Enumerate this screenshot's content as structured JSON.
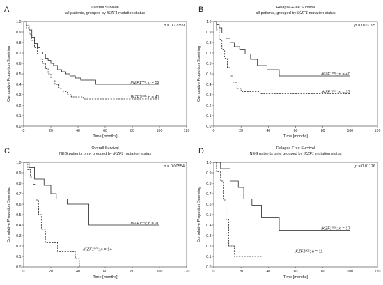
{
  "chart_data": [
    {
      "type": "line",
      "panel_letter": "A",
      "title": "Overall Survival",
      "subtitle_parts": [
        "all patients, grouped by ",
        "IKZF1",
        " mutation status"
      ],
      "xlabel": "Time [months]",
      "ylabel": "Cumulative Proportion Surviving",
      "xlim": [
        0,
        120
      ],
      "ylim": [
        0,
        1
      ],
      "xticks": [
        "0",
        "20",
        "40",
        "60",
        "80",
        "100",
        "120"
      ],
      "yticks": [
        "0.0",
        "0.1",
        "0.2",
        "0.3",
        "0.4",
        "0.5",
        "0.6",
        "0.7",
        "0.8",
        "0.9",
        "1.0"
      ],
      "p_value": "p = 0.27399",
      "series": [
        {
          "style": "solid",
          "legend_gene": "IKZF1",
          "legend_sup": "neg",
          "legend_n": "; n = 52",
          "x": [
            0,
            2,
            2,
            4,
            4,
            6,
            6,
            8,
            8,
            10,
            10,
            12,
            12,
            14,
            14,
            16,
            16,
            18,
            18,
            20,
            20,
            22,
            22,
            25,
            25,
            28,
            28,
            31,
            31,
            34,
            34,
            38,
            38,
            42,
            42,
            53,
            53,
            100
          ],
          "y": [
            1.0,
            1.0,
            0.96,
            0.96,
            0.92,
            0.92,
            0.85,
            0.85,
            0.79,
            0.79,
            0.75,
            0.75,
            0.71,
            0.71,
            0.69,
            0.69,
            0.65,
            0.65,
            0.63,
            0.63,
            0.6,
            0.6,
            0.58,
            0.58,
            0.54,
            0.54,
            0.52,
            0.52,
            0.5,
            0.5,
            0.48,
            0.48,
            0.46,
            0.46,
            0.44,
            0.44,
            0.4,
            0.4
          ]
        },
        {
          "style": "dashed",
          "legend_gene": "IKZF1",
          "legend_sup": "pos",
          "legend_n": "; n = 47",
          "x": [
            0,
            2,
            2,
            4,
            4,
            6,
            6,
            8,
            8,
            10,
            10,
            12,
            12,
            14,
            14,
            16,
            16,
            18,
            18,
            20,
            20,
            23,
            23,
            26,
            26,
            29,
            29,
            32,
            32,
            35,
            35,
            44,
            44,
            100
          ],
          "y": [
            1.0,
            1.0,
            0.94,
            0.94,
            0.88,
            0.88,
            0.82,
            0.82,
            0.75,
            0.75,
            0.69,
            0.69,
            0.64,
            0.64,
            0.6,
            0.6,
            0.55,
            0.55,
            0.5,
            0.5,
            0.45,
            0.45,
            0.4,
            0.4,
            0.36,
            0.36,
            0.33,
            0.33,
            0.3,
            0.3,
            0.28,
            0.28,
            0.26,
            0.26
          ]
        }
      ]
    },
    {
      "type": "line",
      "panel_letter": "B",
      "title": "Relapse-Free Survival",
      "subtitle_parts": [
        "all patients, grouped by ",
        "IKZF1",
        " mutation status"
      ],
      "xlabel": "Time [months]",
      "ylabel": "Cumulative Proportion Surviving",
      "xlim": [
        0,
        120
      ],
      "ylim": [
        0,
        1
      ],
      "xticks": [
        "0",
        "20",
        "40",
        "60",
        "80",
        "100",
        "120"
      ],
      "yticks": [
        "0.0",
        "0.1",
        "0.2",
        "0.3",
        "0.4",
        "0.5",
        "0.6",
        "0.7",
        "0.8",
        "0.9",
        "1.0"
      ],
      "p_value": "p = 0.03195",
      "series": [
        {
          "style": "solid",
          "legend_gene": "IKZF1",
          "legend_sup": "neg",
          "legend_n": "; n = 40",
          "x": [
            0,
            2,
            2,
            4,
            4,
            6,
            6,
            9,
            9,
            12,
            12,
            15,
            15,
            19,
            19,
            23,
            23,
            27,
            27,
            32,
            32,
            39,
            39,
            48,
            48,
            100
          ],
          "y": [
            1.0,
            1.0,
            0.97,
            0.97,
            0.94,
            0.94,
            0.89,
            0.89,
            0.84,
            0.84,
            0.8,
            0.8,
            0.76,
            0.76,
            0.73,
            0.73,
            0.69,
            0.69,
            0.64,
            0.64,
            0.58,
            0.58,
            0.54,
            0.54,
            0.48,
            0.48
          ]
        },
        {
          "style": "dashed",
          "legend_gene": "IKZF1",
          "legend_sup": "pos",
          "legend_n": "; n = 37",
          "x": [
            0,
            2,
            2,
            4,
            4,
            6,
            6,
            8,
            8,
            10,
            10,
            12,
            12,
            14,
            14,
            17,
            17,
            20,
            20,
            34,
            34,
            100
          ],
          "y": [
            1.0,
            1.0,
            0.92,
            0.92,
            0.83,
            0.83,
            0.73,
            0.73,
            0.65,
            0.65,
            0.56,
            0.56,
            0.48,
            0.48,
            0.42,
            0.42,
            0.36,
            0.36,
            0.33,
            0.33,
            0.31,
            0.31
          ]
        }
      ]
    },
    {
      "type": "line",
      "panel_letter": "C",
      "title": "Overall Survival",
      "subtitle_parts": [
        "NEG patients only, grouped by ",
        "IKZF1",
        " mutation status"
      ],
      "xlabel": "Time [months]",
      "ylabel": "Cumulative Proportion Surviving",
      "xlim": [
        0,
        120
      ],
      "ylim": [
        0,
        1
      ],
      "xticks": [
        "0",
        "20",
        "40",
        "60",
        "80",
        "100",
        "120"
      ],
      "yticks": [
        "0.0",
        "0.1",
        "0.2",
        "0.3",
        "0.4",
        "0.5",
        "0.6",
        "0.7",
        "0.8",
        "0.9",
        "1.0"
      ],
      "p_value": "p = 0.00554",
      "series": [
        {
          "style": "solid",
          "legend_gene": "IKZF1",
          "legend_sup": "neg",
          "legend_n": "; n = 20",
          "x": [
            0,
            4,
            4,
            8,
            8,
            15,
            15,
            20,
            20,
            24,
            24,
            32,
            32,
            48,
            48,
            100
          ],
          "y": [
            1.0,
            1.0,
            0.95,
            0.95,
            0.84,
            0.84,
            0.78,
            0.78,
            0.7,
            0.7,
            0.65,
            0.65,
            0.6,
            0.6,
            0.4,
            0.4
          ]
        },
        {
          "style": "dashed",
          "legend_gene": "IKZF1",
          "legend_sup": "pos",
          "legend_n": "; n = 14",
          "x": [
            0,
            3,
            3,
            5,
            5,
            7,
            7,
            9,
            9,
            11,
            11,
            13,
            13,
            16,
            16,
            25,
            25,
            38,
            38,
            41,
            41
          ],
          "y": [
            1.0,
            1.0,
            0.93,
            0.93,
            0.86,
            0.86,
            0.79,
            0.79,
            0.64,
            0.64,
            0.5,
            0.5,
            0.36,
            0.36,
            0.23,
            0.23,
            0.15,
            0.15,
            0.08,
            0.08,
            0.0
          ]
        }
      ]
    },
    {
      "type": "line",
      "panel_letter": "D",
      "title": "Relapse-Free Survival",
      "subtitle_parts": [
        "NEG patients only, grouped by ",
        "IKZF1",
        " mutation status"
      ],
      "xlabel": "Time [months]",
      "ylabel": "Cumulative Proportion Surviving",
      "xlim": [
        0,
        120
      ],
      "ylim": [
        0,
        1
      ],
      "xticks": [
        "0",
        "20",
        "40",
        "60",
        "80",
        "100",
        "120"
      ],
      "yticks": [
        "0.0",
        "0.1",
        "0.2",
        "0.3",
        "0.4",
        "0.5",
        "0.6",
        "0.7",
        "0.8",
        "0.9",
        "1.0"
      ],
      "p_value": "p = 0.01176",
      "series": [
        {
          "style": "solid",
          "legend_gene": "IKZF1",
          "legend_sup": "neg",
          "legend_n": "; n = 17",
          "x": [
            0,
            5,
            5,
            12,
            12,
            18,
            18,
            22,
            22,
            28,
            28,
            35,
            35,
            48,
            48,
            100
          ],
          "y": [
            1.0,
            1.0,
            0.94,
            0.94,
            0.82,
            0.82,
            0.76,
            0.76,
            0.65,
            0.65,
            0.59,
            0.59,
            0.47,
            0.47,
            0.35,
            0.35
          ]
        },
        {
          "style": "dashed",
          "legend_gene": "IKZF1",
          "legend_sup": "pos",
          "legend_n": "; n = 11",
          "x": [
            0,
            2,
            2,
            5,
            5,
            7,
            7,
            9,
            9,
            11,
            11,
            15,
            15,
            28,
            28,
            35
          ],
          "y": [
            1.0,
            1.0,
            0.91,
            0.91,
            0.82,
            0.82,
            0.64,
            0.64,
            0.45,
            0.45,
            0.2,
            0.2,
            0.1,
            0.1,
            0.1,
            0.1
          ]
        }
      ]
    }
  ]
}
